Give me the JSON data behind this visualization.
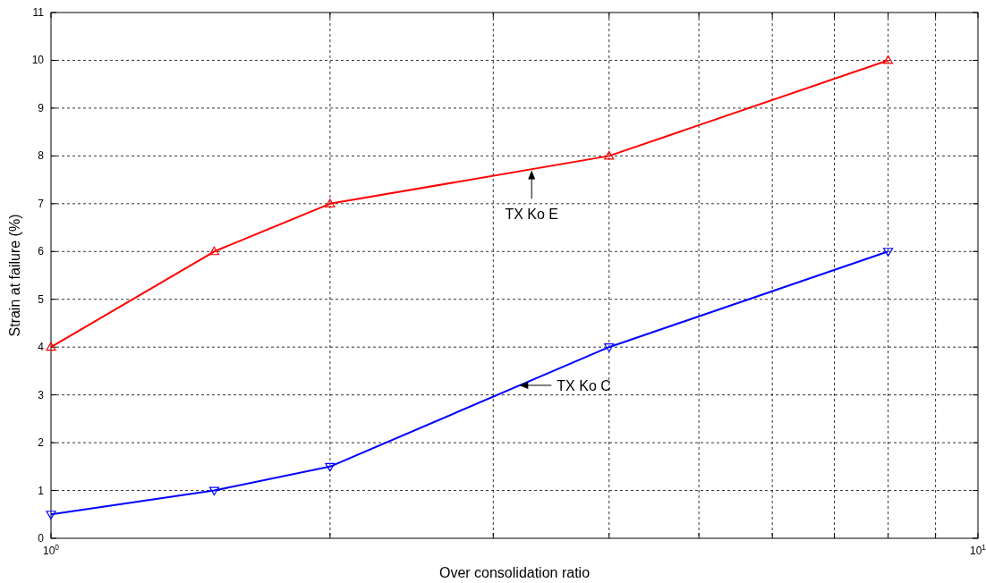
{
  "chart_data": {
    "type": "line",
    "xlabel": "Over consolidation ratio",
    "ylabel": "Strain at failure (%)",
    "log": "x",
    "xlim": [
      1,
      10
    ],
    "xticks": [
      {
        "value": 1,
        "label": "10$^{0}$"
      },
      {
        "value": 2,
        "label": null
      },
      {
        "value": 3,
        "label": null
      },
      {
        "value": 4,
        "label": null
      },
      {
        "value": 5,
        "label": null
      },
      {
        "value": 6,
        "label": null
      },
      {
        "value": 7,
        "label": null
      },
      {
        "value": 8,
        "label": null
      },
      {
        "value": 9,
        "label": null
      },
      {
        "value": 10,
        "label": "10$^{1}$"
      }
    ],
    "ylim": [
      0,
      11
    ],
    "yticks": [
      0,
      1,
      2,
      3,
      4,
      5,
      6,
      7,
      8,
      9,
      10,
      11
    ],
    "grid": true,
    "marker": "triangle",
    "line_style": "solid",
    "x": [
      1,
      1.5,
      2,
      4,
      8
    ],
    "series": [
      {
        "color": "#ff0000",
        "values": [
          4,
          6,
          7,
          8,
          10
        ]
      },
      {
        "color": "#0000ff",
        "values": [
          0.5,
          1,
          1.5,
          4,
          6
        ]
      }
    ],
    "annotations": [
      {
        "text": "TX Ko E",
        "x": 3.3,
        "y": 7.7
      },
      {
        "text": "TX Ko C",
        "x": 3.2,
        "y": 3.2
      }
    ]
  }
}
